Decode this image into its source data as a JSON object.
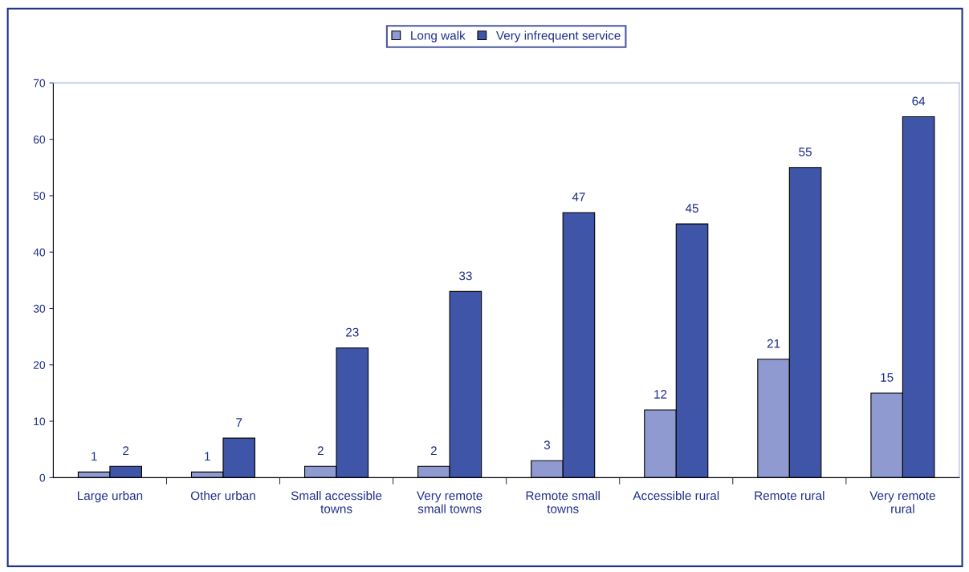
{
  "chart_data": {
    "type": "bar",
    "categories": [
      "Large urban",
      "Other urban",
      "Small accessible towns",
      "Very remote small towns",
      "Remote small towns",
      "Accessible rural",
      "Remote rural",
      "Very remote rural"
    ],
    "series": [
      {
        "name": "Long walk",
        "color": "#8e9ad0",
        "values": [
          1,
          1,
          2,
          2,
          3,
          12,
          21,
          15
        ]
      },
      {
        "name": "Very infrequent service",
        "color": "#3f55a8",
        "values": [
          2,
          7,
          23,
          33,
          47,
          45,
          55,
          64
        ]
      }
    ],
    "ylim": [
      0,
      70
    ],
    "yticks": [
      0,
      10,
      20,
      30,
      40,
      50,
      60,
      70
    ],
    "data_labels": true,
    "legend": "top",
    "grid": false
  }
}
